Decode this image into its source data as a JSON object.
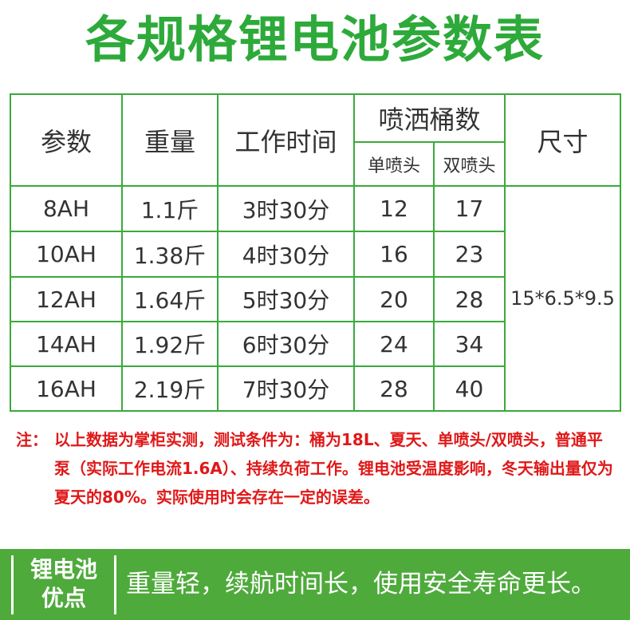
{
  "title": "各规格锂电池参数表",
  "table": {
    "header": [
      "参数",
      "重量",
      "工作时间",
      "喷洒桶数",
      "尺寸"
    ],
    "subheader": [
      "单喷头",
      "双喷头"
    ],
    "rows": [
      [
        "8AH",
        "1.1斤",
        "3时30分",
        "12",
        "17"
      ],
      [
        "10AH",
        "1.38斤",
        "4时30分",
        "16",
        "23"
      ],
      [
        "12AH",
        "1.64斤",
        "5时30分",
        "20",
        "28"
      ],
      [
        "14AH",
        "1.92斤",
        "6时30分",
        "24",
        "34"
      ],
      [
        "16AH",
        "2.19斤",
        "7时30分",
        "28",
        "40"
      ]
    ],
    "size": "15*6.5*9.5"
  },
  "note": {
    "label": "注：",
    "text": "以上数据为掌柜实测，测试条件为：桶为18L、夏天、单喷头/双喷头，普通平泵（实际工作电流1.6A）、持续负荷工作。锂电池受温度影响，冬天输出量仅为夏天的80%。实际使用时会存在一定的误差。"
  },
  "footer": {
    "badge": [
      "锂电池",
      "优点"
    ],
    "text": "重量轻，续航时间长，使用安全寿命更长。"
  }
}
